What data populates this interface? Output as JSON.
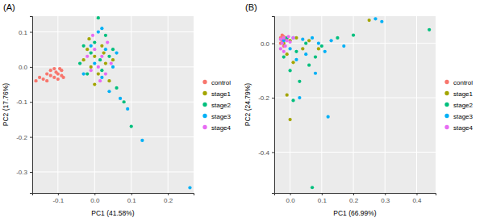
{
  "chart_data": [
    {
      "type": "scatter",
      "title": "(A)",
      "x_label": "PC1 (41.58%)",
      "y_label": "PC2 (17.76%)",
      "xlim": [
        -0.17,
        0.27
      ],
      "ylim": [
        -0.36,
        0.145
      ],
      "xticks": [
        -0.1,
        {
          "value": 0,
          "label": "0.0"
        },
        0.1,
        0.2
      ],
      "yticks": [
        -0.3,
        -0.2,
        -0.1,
        {
          "value": 0,
          "label": "0.0"
        },
        0.1
      ],
      "grid": true,
      "legend": "right",
      "marker": "circle",
      "series": [
        {
          "name": "control",
          "color": "#F8766D",
          "x": [
            -0.16,
            -0.15,
            -0.14,
            -0.13,
            -0.12,
            -0.12,
            -0.11,
            -0.11,
            -0.1,
            -0.1,
            -0.09,
            -0.09,
            -0.085,
            -0.105,
            -0.13,
            -0.095
          ],
          "values": [
            -0.04,
            -0.03,
            -0.035,
            -0.02,
            -0.025,
            -0.01,
            -0.03,
            -0.005,
            -0.02,
            -0.035,
            -0.01,
            -0.025,
            -0.03,
            -0.015,
            -0.04,
            -0.005
          ]
        },
        {
          "name": "stage1",
          "color": "#A3A500",
          "x": [
            -0.03,
            -0.02,
            -0.01,
            0.0,
            0.01,
            0.02,
            0.03,
            0.04,
            -0.015,
            0.05,
            0.0,
            0.025
          ],
          "values": [
            0.02,
            0.05,
            0.0,
            0.03,
            -0.02,
            0.06,
            0.01,
            -0.04,
            0.08,
            0.02,
            -0.05,
            0.04
          ]
        },
        {
          "name": "stage2",
          "color": "#00BF7D",
          "x": [
            -0.04,
            -0.02,
            -0.01,
            0.0,
            0.01,
            0.015,
            0.02,
            0.03,
            0.04,
            0.06,
            0.08,
            0.1,
            -0.03,
            0.05
          ],
          "values": [
            0.01,
            -0.02,
            0.04,
            0.07,
            0.14,
            0.02,
            -0.01,
            0.09,
            0.03,
            -0.06,
            -0.1,
            -0.17,
            0.06,
            0.05
          ]
        },
        {
          "name": "stage3",
          "color": "#00B0F6",
          "x": [
            -0.03,
            -0.01,
            0.0,
            0.01,
            0.02,
            0.03,
            0.04,
            0.05,
            0.06,
            0.07,
            0.09,
            0.13,
            0.26,
            0.02
          ],
          "values": [
            -0.02,
            0.06,
            0.01,
            0.1,
            -0.03,
            0.05,
            -0.07,
            0.0,
            0.04,
            -0.09,
            -0.12,
            -0.21,
            -0.345,
            0.11
          ]
        },
        {
          "name": "stage4",
          "color": "#E76BF3",
          "x": [
            -0.02,
            -0.01,
            0.0,
            0.01,
            0.02,
            0.03,
            0.035,
            0.045,
            -0.005,
            0.015
          ],
          "values": [
            0.03,
            -0.01,
            0.05,
            0.0,
            0.03,
            -0.02,
            0.07,
            0.01,
            0.09,
            -0.04
          ]
        }
      ]
    },
    {
      "type": "scatter",
      "title": "(B)",
      "x_label": "PC1 (66.99%)",
      "y_label": "PC2 (24.79%)",
      "xlim": [
        -0.05,
        0.46
      ],
      "ylim": [
        -0.55,
        0.1
      ],
      "xticks": [
        {
          "value": 0,
          "label": "0.0"
        },
        0.1,
        0.2,
        0.3,
        0.4
      ],
      "yticks": [
        -0.4,
        -0.2,
        {
          "value": 0,
          "label": "0.0"
        }
      ],
      "grid": true,
      "legend": "right",
      "marker": "circle",
      "series": [
        {
          "name": "control",
          "color": "#F8766D",
          "x": [
            -0.03,
            -0.025,
            -0.02,
            -0.03,
            -0.015,
            -0.02,
            -0.01,
            -0.025
          ],
          "values": [
            0.02,
            0.01,
            0.025,
            0.0,
            0.015,
            -0.01,
            0.02,
            0.03
          ]
        },
        {
          "name": "stage1",
          "color": "#A3A500",
          "x": [
            -0.02,
            -0.01,
            0.0,
            0.01,
            0.02,
            0.04,
            0.06,
            0.0,
            -0.01,
            0.09,
            0.25
          ],
          "values": [
            0.0,
            -0.04,
            0.01,
            -0.07,
            0.02,
            -0.02,
            0.01,
            -0.28,
            -0.19,
            -0.02,
            0.085
          ]
        },
        {
          "name": "stage2",
          "color": "#00BF7D",
          "x": [
            -0.02,
            -0.01,
            0.0,
            0.02,
            0.03,
            0.05,
            0.07,
            0.08,
            0.1,
            0.15,
            0.2,
            0.44,
            0.01,
            0.06
          ],
          "values": [
            -0.05,
            0.02,
            -0.1,
            -0.03,
            -0.14,
            0.0,
            -0.53,
            -0.05,
            -0.01,
            0.02,
            0.03,
            0.05,
            -0.21,
            -0.08
          ]
        },
        {
          "name": "stage3",
          "color": "#00B0F6",
          "x": [
            -0.02,
            0.0,
            0.01,
            0.02,
            0.04,
            0.05,
            0.07,
            0.09,
            0.11,
            0.12,
            0.13,
            0.17,
            0.27,
            0.29,
            0.03,
            0.08
          ],
          "values": [
            0.01,
            -0.02,
            0.02,
            -0.06,
            0.015,
            -0.04,
            0.02,
            0.0,
            -0.03,
            -0.27,
            0.01,
            -0.01,
            0.09,
            0.08,
            -0.2,
            -0.11
          ]
        },
        {
          "name": "stage4",
          "color": "#E76BF3",
          "x": [
            -0.03,
            -0.025,
            -0.02,
            -0.015,
            -0.01,
            -0.005,
            0.0,
            0.01,
            -0.02,
            -0.03
          ],
          "values": [
            0.015,
            0.0,
            0.02,
            -0.01,
            0.01,
            0.025,
            0.005,
            0.02,
            -0.03,
            -0.02
          ]
        }
      ]
    }
  ]
}
